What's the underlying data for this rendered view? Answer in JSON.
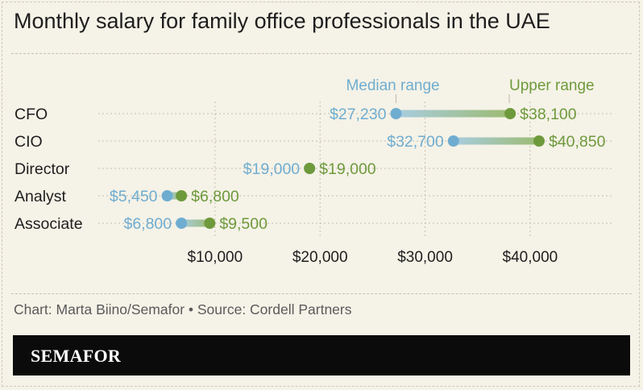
{
  "title": "Monthly salary for family office professionals in the UAE",
  "credit": "Chart: Marta Biino/Semafor • Source: Cordell Partners",
  "brand": "SEMAFOR",
  "colors": {
    "median": "#6fadd0",
    "upper": "#6e9a3c",
    "background": "#f5f2e7",
    "text": "#1e1e1e"
  },
  "chart_data": {
    "type": "dot-range",
    "series": [
      {
        "name": "Median range",
        "values": [
          27230,
          32700,
          19000,
          5450,
          6800
        ]
      },
      {
        "name": "Upper range",
        "values": [
          38100,
          40850,
          19000,
          6800,
          9500
        ]
      }
    ],
    "categories": [
      "CFO",
      "CIO",
      "Director",
      "Analyst",
      "Associate"
    ],
    "value_labels": {
      "median": [
        "$27,230",
        "$32,700",
        "$19,000",
        "$5,450",
        "$6,800"
      ],
      "upper": [
        "$38,100",
        "$40,850",
        "$19,000",
        "$6,800",
        "$9,500"
      ]
    },
    "x_ticks": [
      10000,
      20000,
      30000,
      40000
    ],
    "x_tick_labels": [
      "$10,000",
      "$20,000",
      "$30,000",
      "$40,000"
    ],
    "xlim": [
      0,
      50000
    ],
    "grid": true
  }
}
